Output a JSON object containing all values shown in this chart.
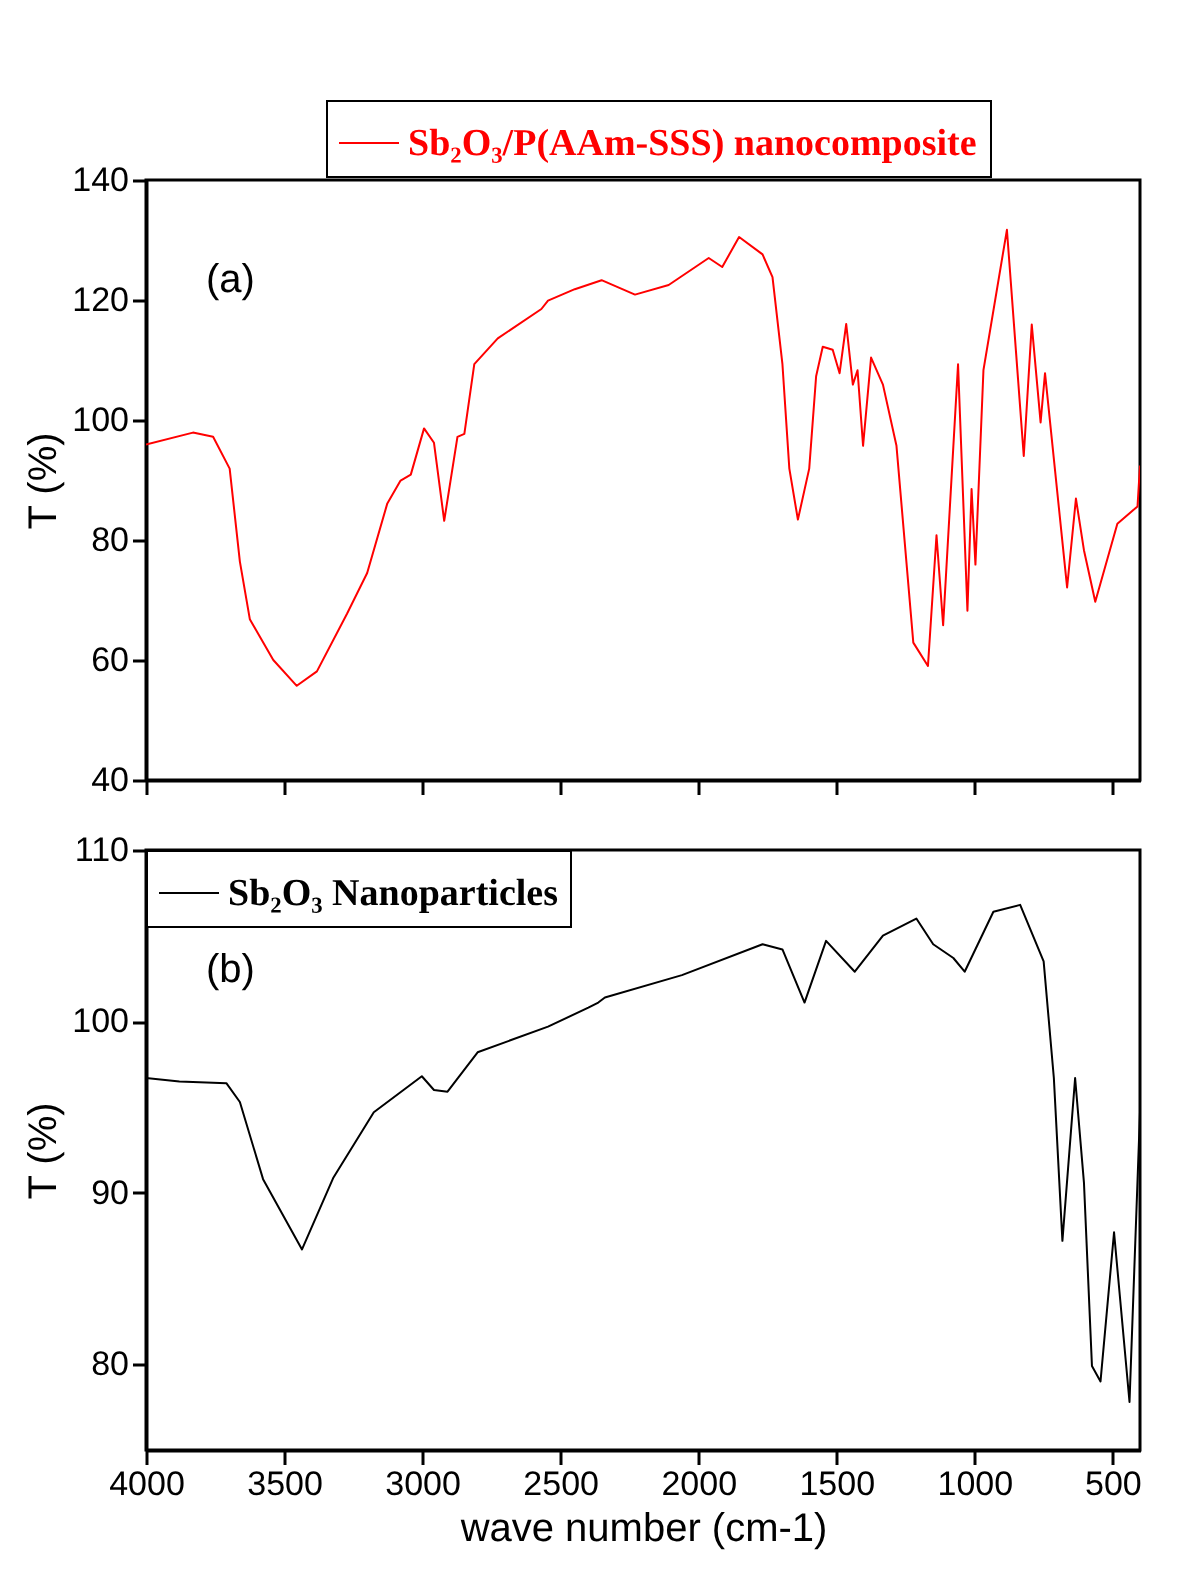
{
  "chart_data": [
    {
      "type": "line",
      "ylabel": "T (%)",
      "annotations": [
        "(a)"
      ],
      "legend": "top right",
      "tick_labels": "y",
      "xlim": [
        4000,
        400
      ],
      "xticks": [
        4000,
        3500,
        3000,
        2500,
        2000,
        1500,
        1000,
        500
      ],
      "ylim": [
        40,
        140
      ],
      "yticks": [
        40,
        60,
        80,
        100,
        120,
        140
      ],
      "x": [
        4000,
        3830,
        3757,
        3697,
        3660,
        3624,
        3539,
        3454,
        3381,
        3272,
        3199,
        3126,
        3078,
        3041,
        2993,
        2957,
        2920,
        2872,
        2847,
        2811,
        2726,
        2568,
        2544,
        2447,
        2350,
        2229,
        2107,
        1962,
        1913,
        1852,
        1767,
        1731,
        1695,
        1670,
        1639,
        1598,
        1573,
        1549,
        1513,
        1488,
        1464,
        1440,
        1423,
        1403,
        1374,
        1331,
        1282,
        1221,
        1168,
        1137,
        1113,
        1059,
        1025,
        1010,
        996,
        967,
        882,
        821,
        792,
        760,
        744,
        664,
        632,
        603,
        562,
        482,
        409,
        400
      ],
      "series": [
        {
          "name": "Sb₂O₃/P(AAm-SSS) nanocomposite",
          "color": "#ff0000",
          "values": [
            95.9,
            97.9,
            97.2,
            91.9,
            76.4,
            66.8,
            60,
            55.7,
            58.1,
            67.7,
            74.5,
            86.1,
            89.9,
            90.9,
            98.6,
            96.2,
            83.2,
            97.2,
            97.7,
            109.3,
            113.6,
            118.5,
            119.9,
            121.8,
            123.3,
            120.9,
            122.5,
            127,
            125.5,
            130.5,
            127.6,
            123.8,
            109.3,
            91.9,
            83.4,
            91.9,
            107.3,
            112.2,
            111.7,
            107.8,
            116,
            105.9,
            108.3,
            95.7,
            110.4,
            105.9,
            95.7,
            62.9,
            59,
            80.8,
            65.8,
            109.3,
            68.2,
            88.5,
            75.9,
            108.3,
            131.7,
            94,
            115.9,
            99.6,
            107.8,
            72.1,
            86.9,
            78.3,
            69.7,
            82.7,
            85.6,
            92.4
          ]
        }
      ]
    },
    {
      "type": "line",
      "ylabel": "T (%)",
      "xlabel": "wave number (cm-1)",
      "annotations": [
        "(b)"
      ],
      "legend": "top left",
      "xlim": [
        4000,
        400
      ],
      "xticks": [
        4000,
        3500,
        3000,
        2500,
        2000,
        1500,
        1000,
        500
      ],
      "ylim": [
        75,
        110
      ],
      "yticks": [
        80,
        90,
        100,
        110
      ],
      "x": [
        4000,
        3879,
        3709,
        3660,
        3576,
        3435,
        3321,
        3175,
        3001,
        2957,
        2908,
        2799,
        2544,
        2398,
        2362,
        2338,
        2059,
        1767,
        1695,
        1615,
        1537,
        1433,
        1331,
        1210,
        1149,
        1076,
        1035,
        931,
        834,
        749,
        712,
        681,
        635,
        603,
        574,
        543,
        494,
        438,
        400
      ],
      "series": [
        {
          "name": "Sb₂O₃ Nanoparticles",
          "color": "#000000",
          "values": [
            96.7,
            96.5,
            96.4,
            95.3,
            90.8,
            86.7,
            90.9,
            94.7,
            96.8,
            96,
            95.9,
            98.2,
            99.7,
            100.8,
            101.1,
            101.4,
            102.7,
            104.5,
            104.2,
            101.1,
            104.7,
            102.9,
            105,
            106,
            104.5,
            103.7,
            102.9,
            106.4,
            106.8,
            103.5,
            96.7,
            87.2,
            96.7,
            90.6,
            79.9,
            79,
            87.7,
            77.8,
            94.7
          ]
        }
      ]
    }
  ]
}
